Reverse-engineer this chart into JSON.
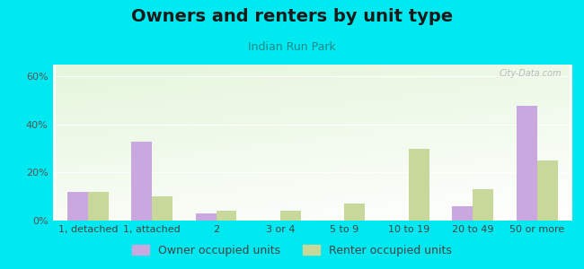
{
  "title": "Owners and renters by unit type",
  "subtitle": "Indian Run Park",
  "categories": [
    "1, detached",
    "1, attached",
    "2",
    "3 or 4",
    "5 to 9",
    "10 to 19",
    "20 to 49",
    "50 or more"
  ],
  "owner_values": [
    12,
    33,
    3,
    0,
    0,
    0,
    6,
    48
  ],
  "renter_values": [
    12,
    10,
    4,
    4,
    7,
    30,
    13,
    25
  ],
  "owner_color": "#c9a8e0",
  "renter_color": "#c8d89a",
  "background_color": "#00e8f0",
  "ylim": [
    0,
    65
  ],
  "yticks": [
    0,
    20,
    40,
    60
  ],
  "ytick_labels": [
    "0%",
    "20%",
    "40%",
    "60%"
  ],
  "legend_owner": "Owner occupied units",
  "legend_renter": "Renter occupied units",
  "bar_width": 0.32,
  "title_fontsize": 14,
  "subtitle_fontsize": 9,
  "tick_fontsize": 8,
  "legend_fontsize": 9
}
